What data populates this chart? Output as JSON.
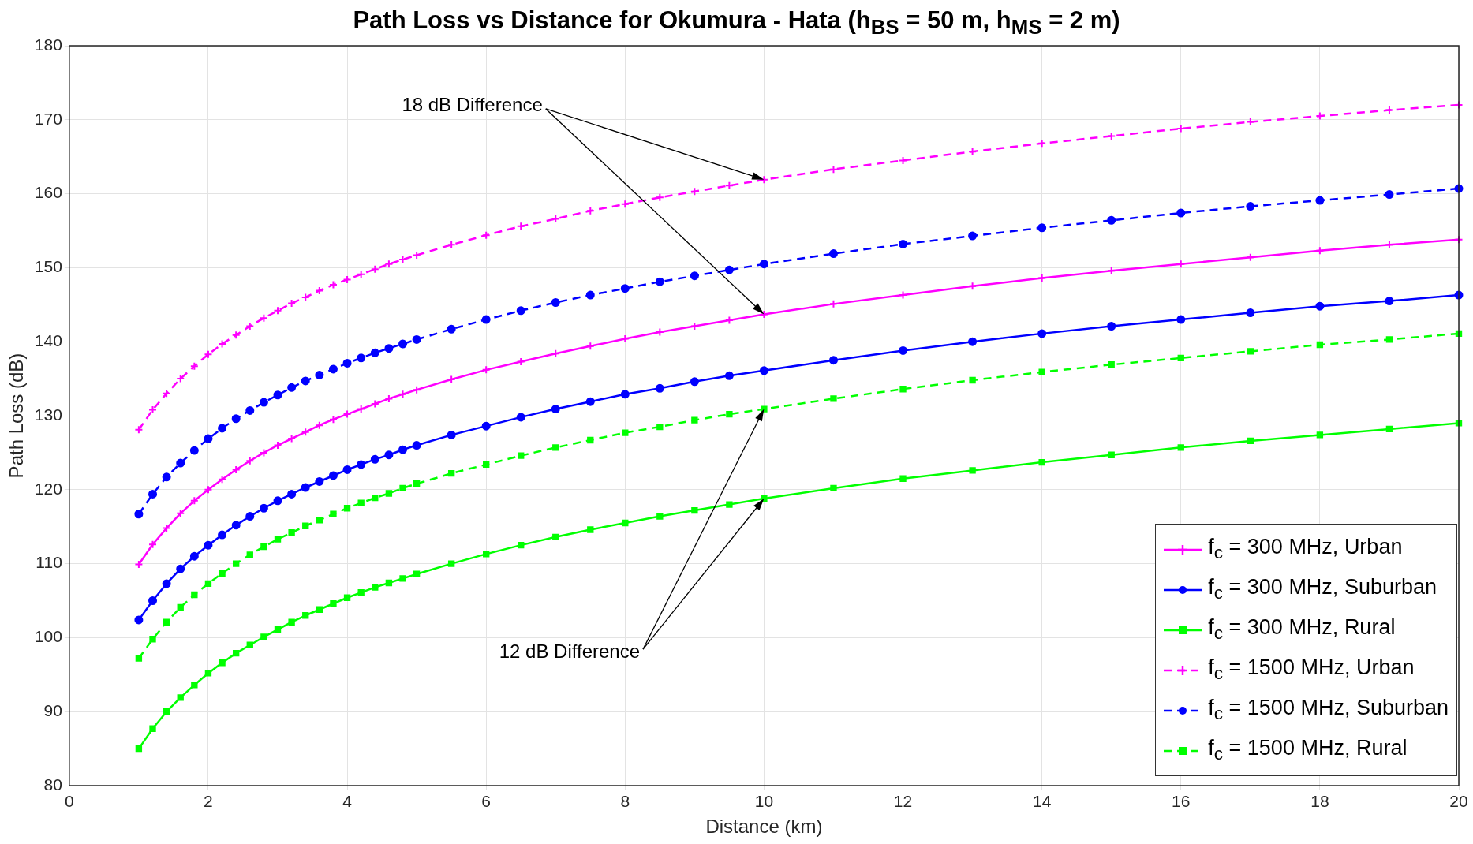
{
  "chart_data": {
    "type": "line",
    "title": "Path Loss vs Distance for Okumura - Hata (h$_{BS}$ = 50 m, h$_{MS}$ = 2 m)",
    "xlabel": "Distance (km)",
    "ylabel": "Path Loss (dB)",
    "x": [
      1,
      1.2,
      1.4,
      1.6,
      1.8,
      2,
      2.2,
      2.4,
      2.6,
      2.8,
      3,
      3.2,
      3.4,
      3.6,
      3.8,
      4,
      4.2,
      4.4,
      4.6,
      4.8,
      5,
      5.5,
      6,
      6.5,
      7,
      7.5,
      8,
      8.5,
      9,
      9.5,
      10,
      11,
      12,
      13,
      14,
      15,
      16,
      17,
      18,
      19,
      20
    ],
    "series": [
      {
        "name": "f$_{c}$ = 300 MHz, Urban",
        "color": "#ff00ff",
        "marker": "cross",
        "line_style": "solid",
        "values": [
          109.9,
          112.6,
          114.8,
          116.8,
          118.5,
          120.0,
          121.4,
          122.7,
          123.9,
          125.0,
          126.0,
          126.9,
          127.8,
          128.7,
          129.5,
          130.2,
          130.9,
          131.6,
          132.3,
          132.9,
          133.5,
          134.9,
          136.2,
          137.3,
          138.4,
          139.4,
          140.4,
          141.3,
          142.1,
          142.9,
          143.7,
          145.1,
          146.3,
          147.5,
          148.6,
          149.6,
          150.5,
          151.4,
          152.3,
          153.1,
          153.8
        ]
      },
      {
        "name": "f$_{c}$ = 300 MHz, Suburban",
        "color": "#0000ff",
        "marker": "circle",
        "line_style": "solid",
        "values": [
          102.4,
          105.0,
          107.3,
          109.3,
          111.0,
          112.5,
          113.9,
          115.2,
          116.4,
          117.5,
          118.5,
          119.4,
          120.3,
          121.1,
          121.9,
          122.7,
          123.4,
          124.1,
          124.7,
          125.4,
          126.0,
          127.4,
          128.6,
          129.8,
          130.9,
          131.9,
          132.9,
          133.7,
          134.6,
          135.4,
          136.1,
          137.5,
          138.8,
          140.0,
          141.1,
          142.1,
          143.0,
          143.9,
          144.8,
          145.5,
          146.3
        ]
      },
      {
        "name": "f$_{c}$ = 300 MHz, Rural",
        "color": "#00ff00",
        "marker": "square",
        "line_style": "solid",
        "values": [
          85.0,
          87.7,
          90.0,
          91.9,
          93.6,
          95.2,
          96.6,
          97.9,
          99.0,
          100.1,
          101.1,
          102.1,
          103.0,
          103.8,
          104.6,
          105.4,
          106.1,
          106.8,
          107.4,
          108.0,
          108.6,
          110.0,
          111.3,
          112.5,
          113.6,
          114.6,
          115.5,
          116.4,
          117.2,
          118.0,
          118.8,
          120.2,
          121.5,
          122.6,
          123.7,
          124.7,
          125.7,
          126.6,
          127.4,
          128.2,
          129.0
        ]
      },
      {
        "name": "f$_{c}$ = 1500 MHz, Urban",
        "color": "#ff00ff",
        "marker": "cross",
        "line_style": "dashed",
        "values": [
          128.1,
          130.8,
          133.0,
          135.0,
          136.7,
          138.3,
          139.7,
          140.9,
          142.1,
          143.2,
          144.2,
          145.2,
          146.0,
          146.9,
          147.7,
          148.4,
          149.1,
          149.8,
          150.5,
          151.1,
          151.7,
          153.1,
          154.4,
          155.6,
          156.6,
          157.7,
          158.6,
          159.5,
          160.3,
          161.1,
          161.9,
          163.3,
          164.5,
          165.7,
          166.8,
          167.8,
          168.8,
          169.7,
          170.5,
          171.3,
          172.0
        ]
      },
      {
        "name": "f$_{c}$ = 1500 MHz, Suburban",
        "color": "#0000ff",
        "marker": "circle",
        "line_style": "dashed",
        "values": [
          116.7,
          119.4,
          121.7,
          123.6,
          125.3,
          126.9,
          128.3,
          129.6,
          130.7,
          131.8,
          132.8,
          133.8,
          134.7,
          135.5,
          136.3,
          137.1,
          137.8,
          138.5,
          139.1,
          139.7,
          140.3,
          141.7,
          143.0,
          144.2,
          145.3,
          146.3,
          147.2,
          148.1,
          148.9,
          149.7,
          150.5,
          151.9,
          153.2,
          154.3,
          155.4,
          156.4,
          157.4,
          158.3,
          159.1,
          159.9,
          160.7
        ]
      },
      {
        "name": "f$_{c}$ = 1500 MHz, Rural",
        "color": "#00ff00",
        "marker": "square",
        "line_style": "dashed",
        "values": [
          97.2,
          99.8,
          102.1,
          104.1,
          105.8,
          107.3,
          108.7,
          110.0,
          111.2,
          112.3,
          113.3,
          114.2,
          115.1,
          115.9,
          116.7,
          117.5,
          118.2,
          118.9,
          119.5,
          120.2,
          120.8,
          122.2,
          123.4,
          124.6,
          125.7,
          126.7,
          127.7,
          128.5,
          129.4,
          130.2,
          130.9,
          132.3,
          133.6,
          134.8,
          135.9,
          136.9,
          137.8,
          138.7,
          139.6,
          140.3,
          141.1
        ]
      }
    ],
    "xlim": [
      0,
      20
    ],
    "xticks": [
      0,
      2,
      4,
      6,
      8,
      10,
      12,
      14,
      16,
      18,
      20
    ],
    "ylim": [
      80,
      180
    ],
    "yticks": [
      80,
      90,
      100,
      110,
      120,
      130,
      140,
      150,
      160,
      170,
      180
    ],
    "grid": true,
    "legend": "bottom right",
    "annotations": [
      {
        "text": "18 dB Difference",
        "x": 10,
        "y": 161.9
      },
      {
        "text": "12 dB Difference",
        "x": 10,
        "y": 130.9
      }
    ]
  }
}
